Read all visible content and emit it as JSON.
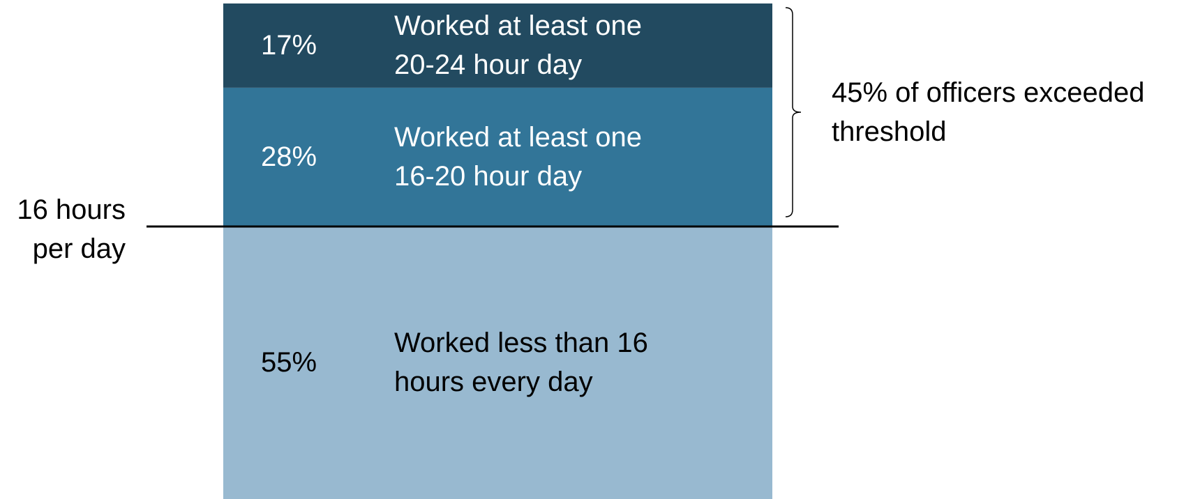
{
  "chart_data": {
    "type": "stacked_bar",
    "ylim": [
      0,
      100
    ],
    "series": [
      {
        "name": "Worked less than 16 hours every day",
        "color": "#98b9d0",
        "text_color": "#000000",
        "values": [
          55
        ],
        "value_labels": [
          "55%"
        ]
      },
      {
        "name": "Worked at least one 16-20 hour day",
        "color": "#327598",
        "text_color": "#ffffff",
        "values": [
          28
        ],
        "value_labels": [
          "28%"
        ]
      },
      {
        "name": "Worked at least one 20-24 hour day",
        "color": "#224a60",
        "text_color": "#ffffff",
        "values": [
          17
        ],
        "value_labels": [
          "17%"
        ]
      }
    ],
    "threshold_label": "16 hours per day",
    "bracket_label": "45% of officers exceeded threshold"
  }
}
